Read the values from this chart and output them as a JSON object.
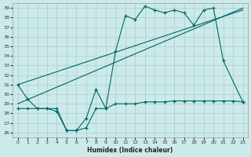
{
  "xlabel": "Humidex (Indice chaleur)",
  "bg_color": "#cceaea",
  "grid_color": "#aacccc",
  "line_color": "#006666",
  "xlim": [
    -0.5,
    23.5
  ],
  "ylim": [
    25.5,
    39.5
  ],
  "yticks": [
    26,
    27,
    28,
    29,
    30,
    31,
    32,
    33,
    34,
    35,
    36,
    37,
    38,
    39
  ],
  "xticks": [
    0,
    1,
    2,
    3,
    4,
    5,
    6,
    7,
    8,
    9,
    10,
    11,
    12,
    13,
    14,
    15,
    16,
    17,
    18,
    19,
    20,
    21,
    22,
    23
  ],
  "series1_x": [
    0,
    1,
    2,
    3,
    4,
    5,
    6,
    7,
    8,
    9,
    10,
    11,
    12,
    13,
    14,
    15,
    16,
    17,
    18,
    19,
    20,
    21,
    23
  ],
  "series1_y": [
    31.0,
    29.5,
    28.5,
    28.5,
    28.2,
    26.2,
    26.2,
    27.5,
    30.5,
    28.5,
    34.5,
    38.2,
    37.8,
    39.2,
    38.8,
    38.5,
    38.8,
    38.5,
    37.2,
    38.8,
    39.0,
    33.5,
    29.2
  ],
  "series2_x": [
    0,
    1,
    2,
    3,
    4,
    5,
    6,
    7,
    8,
    9,
    10,
    11,
    12,
    13,
    14,
    15,
    16,
    17,
    18,
    19,
    20,
    21,
    22,
    23
  ],
  "series2_y": [
    28.5,
    28.5,
    28.5,
    28.5,
    28.5,
    26.2,
    26.2,
    26.5,
    28.5,
    28.5,
    29.0,
    29.0,
    29.0,
    29.2,
    29.2,
    29.2,
    29.3,
    29.3,
    29.3,
    29.3,
    29.3,
    29.3,
    29.3,
    29.2
  ],
  "series3_x": [
    0,
    23
  ],
  "series3_y": [
    29.0,
    39.0
  ],
  "series4_x": [
    0,
    23
  ],
  "series4_y": [
    31.0,
    38.8
  ]
}
